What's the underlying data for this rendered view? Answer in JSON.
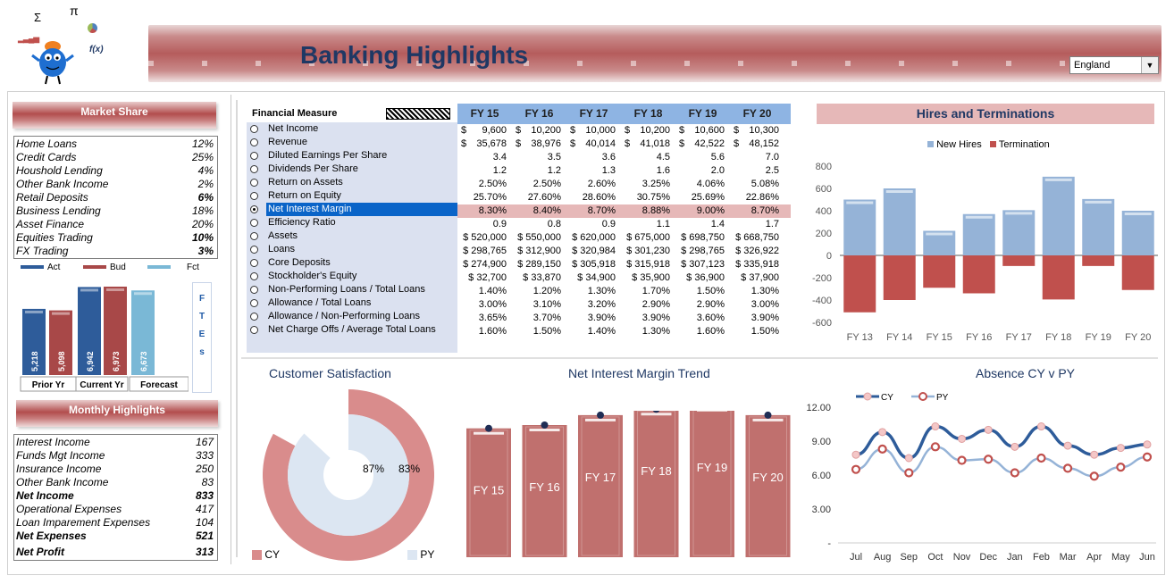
{
  "header": {
    "title": "Banking Highlights",
    "region": "England"
  },
  "logo": {
    "sigma": "Σ",
    "pi": "π",
    "fx": "f(x)"
  },
  "market_share": {
    "title": "Market Share",
    "items": [
      {
        "label": "Home Loans",
        "value": "12%"
      },
      {
        "label": "Credit Cards",
        "value": "25%"
      },
      {
        "label": "Houshold Lending",
        "value": "4%"
      },
      {
        "label": "Other Bank Income",
        "value": "2%"
      },
      {
        "label": "Retail Deposits",
        "value": "6%"
      },
      {
        "label": "Business Lending",
        "value": "18%"
      },
      {
        "label": "Asset Finance",
        "value": "20%"
      },
      {
        "label": "Equities Trading",
        "value": "10%"
      },
      {
        "label": "FX Trading",
        "value": "3%"
      }
    ]
  },
  "ftes": {
    "legend": [
      "Act",
      "Bud",
      "Fct"
    ],
    "groups": [
      {
        "label": "Prior Yr",
        "act": 5218,
        "bud": 5098
      },
      {
        "label": "Current Yr",
        "act": 6942,
        "bud": 6973
      },
      {
        "label": "Forecast",
        "fct": 6673
      }
    ],
    "side_label": [
      "F",
      "T",
      "E",
      "s"
    ],
    "value_labels": [
      "5,218",
      "5,098",
      "6,942",
      "6,973",
      "6,673"
    ]
  },
  "monthly": {
    "title": "Monthly Highlights",
    "items": [
      {
        "label": "Interest Income",
        "value": "167",
        "bold": false
      },
      {
        "label": "Funds Mgt Income",
        "value": "333",
        "bold": false
      },
      {
        "label": "Insurance Income",
        "value": "250",
        "bold": false
      },
      {
        "label": "Other Bank Income",
        "value": "83",
        "bold": false
      },
      {
        "label": "Net Income",
        "value": "833",
        "bold": true
      },
      {
        "label": "Operational Expenses",
        "value": "417",
        "bold": false
      },
      {
        "label": "Loan Imparement Expenses",
        "value": "104",
        "bold": false
      },
      {
        "label": "Net Expenses",
        "value": "521",
        "bold": true
      },
      {
        "label": "Net Profit",
        "value": "313",
        "bold": true
      }
    ]
  },
  "financial": {
    "header": "Financial Measure",
    "years": [
      "FY 15",
      "FY 16",
      "FY 17",
      "FY 18",
      "FY 19",
      "FY 20"
    ],
    "selected_index": 6,
    "measures": [
      {
        "label": "Net Income",
        "cur": true,
        "values": [
          "9,600",
          "10,200",
          "10,000",
          "10,200",
          "10,600",
          "10,300"
        ]
      },
      {
        "label": "Revenue",
        "cur": true,
        "values": [
          "35,678",
          "38,976",
          "40,014",
          "41,018",
          "42,522",
          "48,152"
        ]
      },
      {
        "label": "Diluted Earnings Per Share",
        "cur": false,
        "values": [
          "3.4",
          "3.5",
          "3.6",
          "4.5",
          "5.6",
          "7.0"
        ]
      },
      {
        "label": "Dividends Per Share",
        "cur": false,
        "values": [
          "1.2",
          "1.2",
          "1.3",
          "1.6",
          "2.0",
          "2.5"
        ]
      },
      {
        "label": "Return on Assets",
        "cur": false,
        "values": [
          "2.50%",
          "2.50%",
          "2.60%",
          "3.25%",
          "4.06%",
          "5.08%"
        ]
      },
      {
        "label": "Return on Equity",
        "cur": false,
        "values": [
          "25.70%",
          "27.60%",
          "28.60%",
          "30.75%",
          "25.69%",
          "22.86%"
        ]
      },
      {
        "label": "Net Interest Margin",
        "cur": false,
        "values": [
          "8.30%",
          "8.40%",
          "8.70%",
          "8.88%",
          "9.00%",
          "8.70%"
        ]
      },
      {
        "label": "Efficiency Ratio",
        "cur": false,
        "values": [
          "0.9",
          "0.8",
          "0.9",
          "1.1",
          "1.4",
          "1.7"
        ]
      },
      {
        "label": "Assets",
        "cur": false,
        "values": [
          "$ 520,000",
          "$ 550,000",
          "$ 620,000",
          "$ 675,000",
          "$ 698,750",
          "$ 668,750"
        ]
      },
      {
        "label": "Loans",
        "cur": false,
        "values": [
          "$ 298,765",
          "$ 312,900",
          "$ 320,984",
          "$ 301,230",
          "$ 298,765",
          "$ 326,922"
        ]
      },
      {
        "label": "Core Deposits",
        "cur": false,
        "values": [
          "$ 274,900",
          "$ 289,150",
          "$ 305,918",
          "$ 315,918",
          "$ 307,123",
          "$ 335,918"
        ]
      },
      {
        "label": "Stockholder's Equity",
        "cur": false,
        "values": [
          "$ 32,700",
          "$ 33,870",
          "$ 34,900",
          "$ 35,900",
          "$ 36,900",
          "$ 37,900"
        ]
      },
      {
        "label": "Non-Performing Loans / Total Loans",
        "cur": false,
        "values": [
          "1.40%",
          "1.20%",
          "1.30%",
          "1.70%",
          "1.50%",
          "1.30%"
        ]
      },
      {
        "label": "Allowance / Total Loans",
        "cur": false,
        "values": [
          "3.00%",
          "3.10%",
          "3.20%",
          "2.90%",
          "2.90%",
          "3.00%"
        ]
      },
      {
        "label": "Allowance / Non-Performing Loans",
        "cur": false,
        "values": [
          "3.65%",
          "3.70%",
          "3.90%",
          "3.90%",
          "3.60%",
          "3.90%"
        ]
      },
      {
        "label": "Net Charge Offs / Average Total Loans",
        "cur": false,
        "values": [
          "1.60%",
          "1.50%",
          "1.40%",
          "1.30%",
          "1.60%",
          "1.50%"
        ]
      }
    ]
  },
  "chart_data": [
    {
      "id": "hires",
      "type": "bar",
      "title": "Hires and Terminations",
      "categories": [
        "FY 13",
        "FY 14",
        "FY 15",
        "FY 16",
        "FY 17",
        "FY 18",
        "FY 19",
        "FY 20"
      ],
      "series": [
        {
          "name": "New Hires",
          "values": [
            500,
            600,
            220,
            370,
            405,
            705,
            505,
            400
          ]
        },
        {
          "name": "Termination",
          "values": [
            -510,
            -400,
            -290,
            -340,
            -95,
            -395,
            -95,
            -310
          ]
        }
      ],
      "ylim": [
        -600,
        800
      ],
      "yticks": [
        "800",
        "600",
        "400",
        "200",
        "0",
        "-200",
        "-400",
        "-600"
      ]
    },
    {
      "id": "satisfaction",
      "type": "pie",
      "title": "Customer Satisfaction",
      "series": [
        {
          "name": "CY",
          "value": 83
        },
        {
          "name": "PY",
          "value": 87
        }
      ],
      "labels": [
        "87%",
        "83%"
      ],
      "legend": [
        "CY",
        "PY"
      ]
    },
    {
      "id": "nim",
      "type": "bar",
      "title": "Net Interest Margin Trend",
      "categories": [
        "FY 15",
        "FY 16",
        "FY 17",
        "FY 18",
        "FY 19",
        "FY 20"
      ],
      "values": [
        8.3,
        8.4,
        8.7,
        8.88,
        9.0,
        8.7
      ]
    },
    {
      "id": "absence",
      "type": "line",
      "title": "Absence CY v PY",
      "categories": [
        "Jul",
        "Aug",
        "Sep",
        "Oct",
        "Nov",
        "Dec",
        "Jan",
        "Feb",
        "Mar",
        "Apr",
        "May",
        "Jun"
      ],
      "series": [
        {
          "name": "CY",
          "values": [
            7.8,
            9.8,
            7.5,
            10.3,
            9.2,
            10.0,
            8.5,
            10.3,
            8.6,
            7.8,
            8.4,
            8.7
          ]
        },
        {
          "name": "PY",
          "values": [
            6.5,
            8.3,
            6.2,
            8.5,
            7.3,
            7.4,
            6.2,
            7.5,
            6.6,
            5.9,
            6.7,
            7.6
          ]
        }
      ],
      "ylim": [
        0,
        12
      ],
      "yticks": [
        "12.00",
        "9.00",
        "6.00",
        "3.00",
        "-"
      ]
    }
  ]
}
